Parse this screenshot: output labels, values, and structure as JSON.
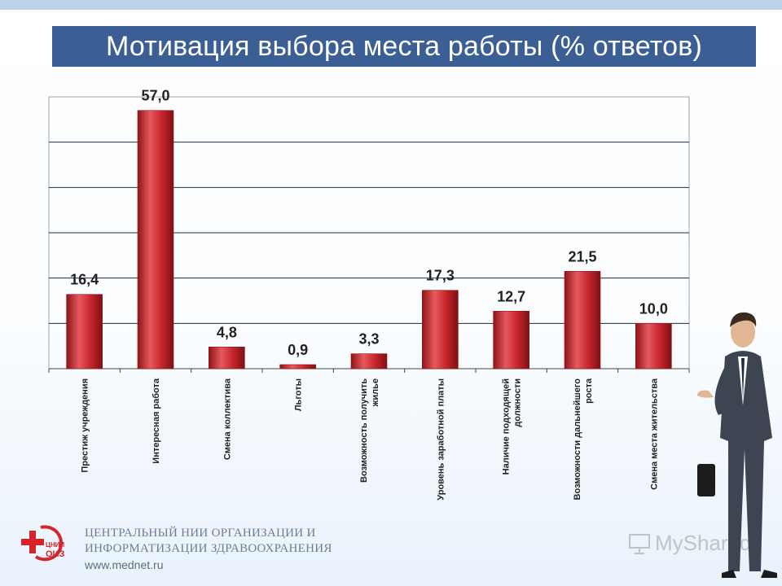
{
  "slide": {
    "title": "Мотивация выбора места работы (% ответов)"
  },
  "footer": {
    "org_line1": "ЦЕНТРАЛЬНЫЙ НИИ ОРГАНИЗАЦИИ И",
    "org_line2": "ИНФОРМАТИЗАЦИИ ЗДРАВООХРАНЕНИЯ",
    "url": "www.mednet.ru",
    "logo_text": "ЦНИИ ОИЗ",
    "watermark": "MyShared"
  },
  "chart_data": {
    "type": "bar",
    "title": "Мотивация выбора места работы (% ответов)",
    "categories": [
      "Престиж учреждения",
      "Интересная работа",
      "Смена коллектива",
      "Льготы",
      "Возможность получить жилье",
      "Уровень заработной платы",
      "Наличие подходящей должности",
      "Возможности дальнейшего роста",
      "Смена места жительства"
    ],
    "tick_label_lines": [
      [
        "Престиж учреждения"
      ],
      [
        "Интересная работа"
      ],
      [
        "Смена коллектива"
      ],
      [
        "Льготы"
      ],
      [
        "Возможность получить",
        "жилье"
      ],
      [
        "Уровень заработной платы"
      ],
      [
        "Наличие подходящей",
        "должности"
      ],
      [
        "Возможности дальнейшего",
        "роста"
      ],
      [
        "Смена места жительства"
      ]
    ],
    "values": [
      16.4,
      57.0,
      4.8,
      0.9,
      3.3,
      17.3,
      12.7,
      21.5,
      10.0
    ],
    "value_labels": [
      "16,4",
      "57,0",
      "4,8",
      "0,9",
      "3,3",
      "17,3",
      "12,7",
      "21,5",
      "10,0"
    ],
    "ylim": [
      0,
      60
    ],
    "grid": true,
    "colors": {
      "bar": "#c9272d",
      "bar_dark": "#8e1418",
      "bar_light": "#e65a5e",
      "grid": "#1f2a44"
    }
  }
}
